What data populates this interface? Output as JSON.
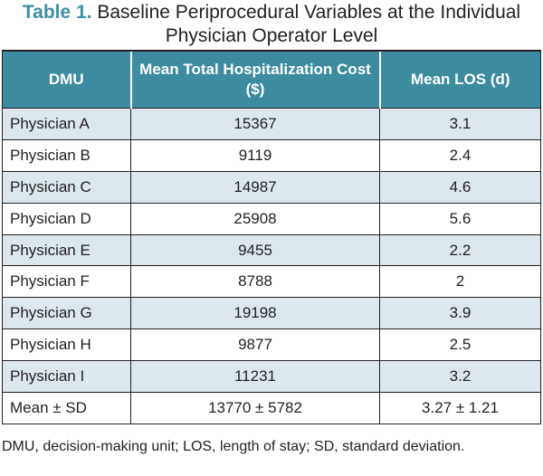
{
  "caption": {
    "label": "Table 1.",
    "title": "Baseline Periprocedural Variables at the Individual Physician Operator Level"
  },
  "table": {
    "headers": [
      "DMU",
      "Mean Total Hospitalization Cost ($)",
      "Mean LOS (d)"
    ],
    "rows": [
      [
        "Physician A",
        "15367",
        "3.1"
      ],
      [
        "Physician B",
        "9119",
        "2.4"
      ],
      [
        "Physician C",
        "14987",
        "4.6"
      ],
      [
        "Physician D",
        "25908",
        "5.6"
      ],
      [
        "Physician E",
        "9455",
        "2.2"
      ],
      [
        "Physician F",
        "8788",
        "2"
      ],
      [
        "Physician G",
        "19198",
        "3.9"
      ],
      [
        "Physician H",
        "9877",
        "2.5"
      ],
      [
        "Physician I",
        "11231",
        "3.2"
      ],
      [
        "Mean ± SD",
        "13770 ± 5782",
        "3.27 ± 1.21"
      ]
    ]
  },
  "footnote": "DMU, decision-making unit; LOS, length of stay; SD, standard deviation.",
  "colors": {
    "header_bg": "#3c8ba1",
    "label_text": "#3e8fa6",
    "shaded_row": "#dce8ee"
  }
}
